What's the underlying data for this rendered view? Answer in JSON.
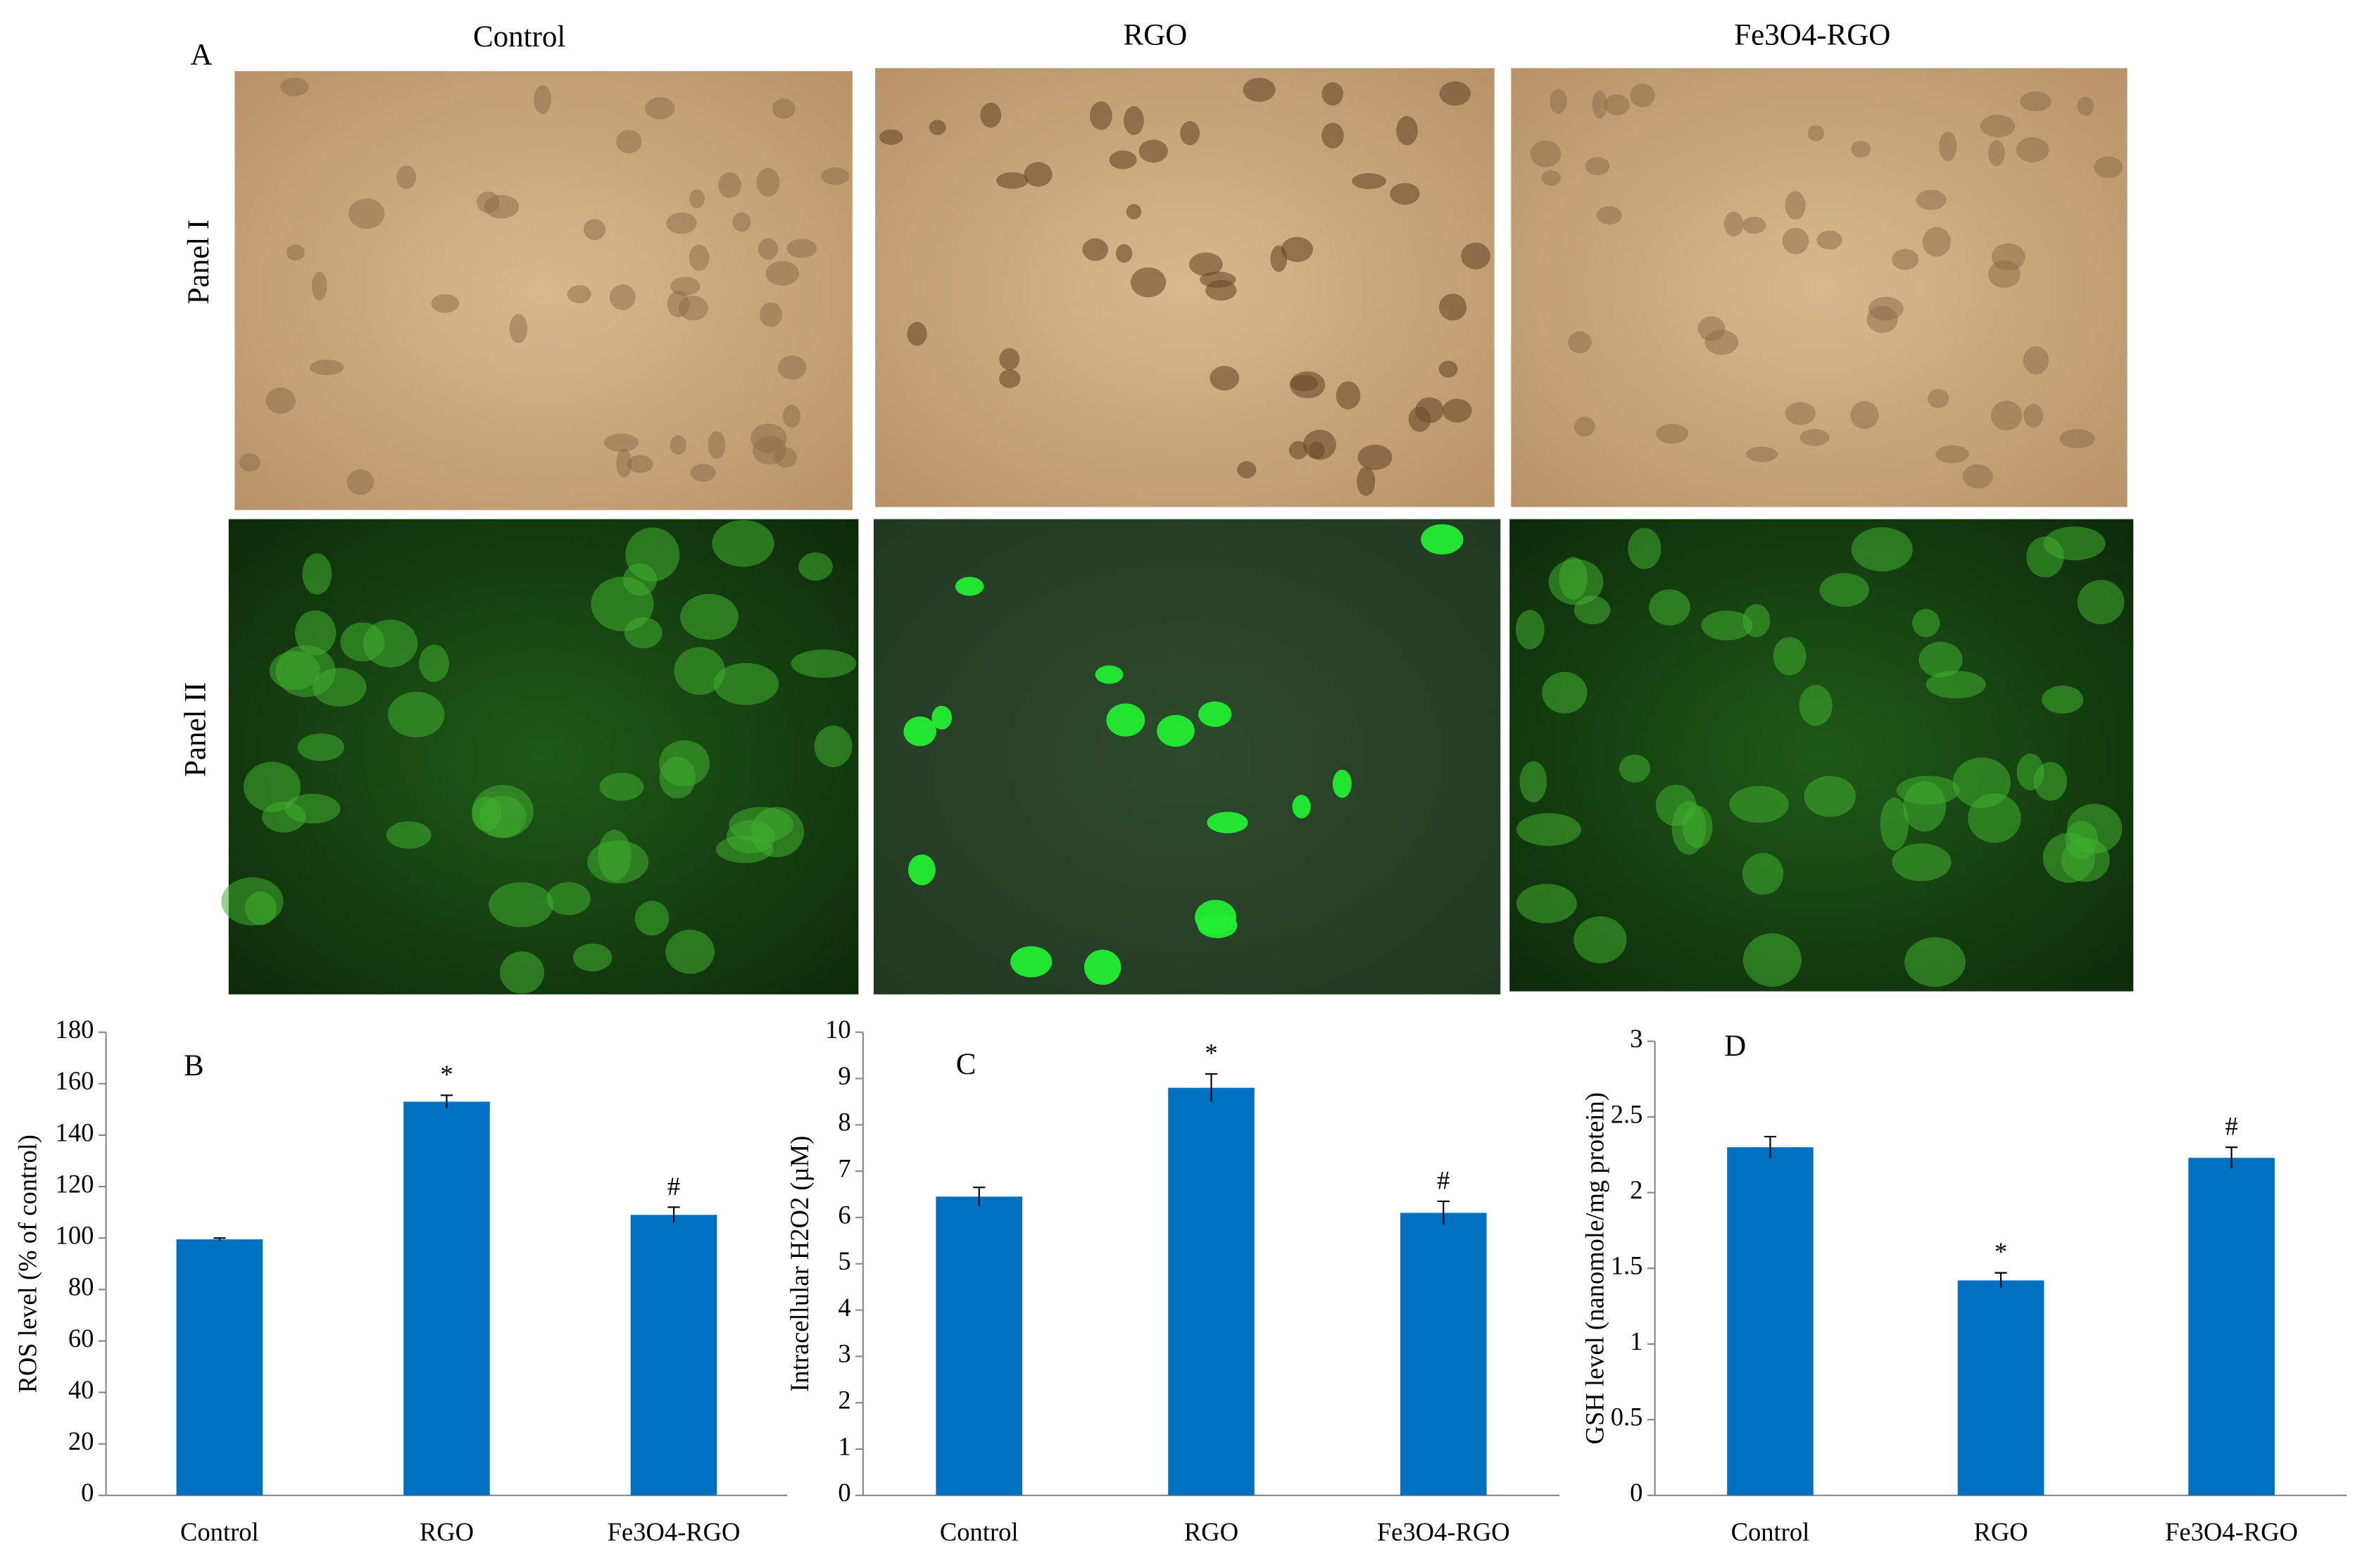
{
  "panel_a": {
    "label": "A",
    "columns": [
      "Control",
      "RGO",
      "Fe3O4-RGO"
    ],
    "rows": [
      "Panel I",
      "Panel II"
    ]
  },
  "chart_data": [
    {
      "type": "bar",
      "label": "B",
      "ylabel": "ROS level (% of control)",
      "categories": [
        "Control",
        "RGO",
        "Fe3O4-RGO"
      ],
      "values": [
        99.5,
        153,
        109
      ],
      "errors": [
        0.5,
        2.5,
        3
      ],
      "significance": [
        null,
        "*",
        "#"
      ],
      "color": "#0070c0",
      "ylim": [
        0,
        180
      ],
      "yticks": [
        0,
        20,
        40,
        60,
        80,
        100,
        120,
        140,
        160,
        180
      ]
    },
    {
      "type": "bar",
      "label": "C",
      "ylabel": "Intracellular H2O2 (µM)",
      "categories": [
        "Control",
        "RGO",
        "Fe3O4-RGO"
      ],
      "values": [
        6.45,
        8.8,
        6.1
      ],
      "errors": [
        0.2,
        0.3,
        0.25
      ],
      "significance": [
        null,
        "*",
        "#"
      ],
      "color": "#0070c0",
      "ylim": [
        0,
        10
      ],
      "yticks": [
        0,
        1,
        2,
        3,
        4,
        5,
        6,
        7,
        8,
        9,
        10
      ]
    },
    {
      "type": "bar",
      "label": "D",
      "ylabel": "GSH level (nanomole/mg protein)",
      "categories": [
        "Control",
        "RGO",
        "Fe3O4-RGO"
      ],
      "values": [
        2.3,
        1.42,
        2.23
      ],
      "errors": [
        0.07,
        0.05,
        0.07
      ],
      "significance": [
        null,
        "*",
        "#"
      ],
      "color": "#0070c0",
      "ylim": [
        0,
        3
      ],
      "yticks": [
        0,
        0.5,
        1,
        1.5,
        2,
        2.5,
        3
      ]
    }
  ]
}
